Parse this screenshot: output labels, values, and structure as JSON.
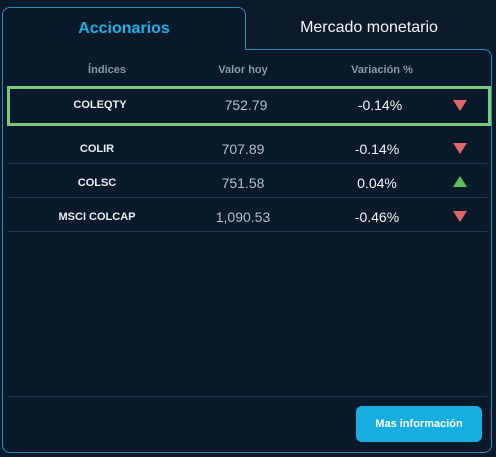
{
  "tabs": [
    {
      "label": "Accionarios",
      "active": true
    },
    {
      "label": "Mercado monetario",
      "active": false
    }
  ],
  "table": {
    "headers": [
      "Índices",
      "Valor hoy",
      "Variación %"
    ],
    "rows": [
      {
        "name": "COLEQTY",
        "value": "752.79",
        "variation": "-0.14%",
        "trend": "down",
        "selected": true
      },
      {
        "name": "COLIR",
        "value": "707.89",
        "variation": "-0.14%",
        "trend": "down",
        "selected": false
      },
      {
        "name": "COLSC",
        "value": "751.58",
        "variation": "0.04%",
        "trend": "up",
        "selected": false
      },
      {
        "name": "MSCI COLCAP",
        "value": "1,090.53",
        "variation": "-0.46%",
        "trend": "down",
        "selected": false
      }
    ]
  },
  "more_button": {
    "label": "Mas información"
  },
  "colors": {
    "accent": "#16aee0",
    "selected_border": "#7ac97a",
    "down": "#e0666a",
    "up": "#5fbf5f",
    "background": "#081a29"
  }
}
